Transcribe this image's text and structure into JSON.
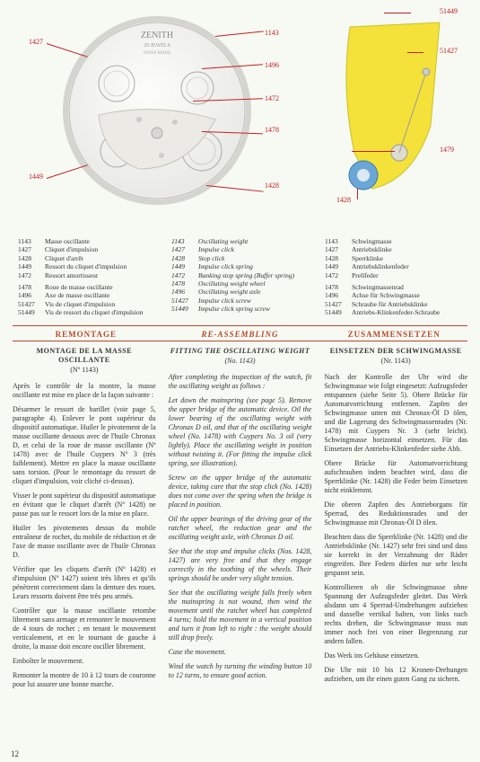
{
  "brand": "ZENITH",
  "jewels": "20 JEWELS",
  "swiss": "SWISS MADE",
  "callouts": {
    "c1143": "1143",
    "c1427": "1427",
    "c1428": "1428",
    "c1449": "1449",
    "c1472": "1472",
    "c1478": "1478",
    "c1479": "1479",
    "c1496": "1496",
    "c51427": "51427",
    "c51449": "51449"
  },
  "parts_fr": [
    {
      "n": "1143",
      "l": "Masse oscillante"
    },
    {
      "n": "1427",
      "l": "Cliquet d'impulsion"
    },
    {
      "n": "1428",
      "l": "Cliquet d'arrêt"
    },
    {
      "n": "1449",
      "l": "Ressort du cliquet d'impulsion"
    },
    {
      "n": "1472",
      "l": "Ressort amortisseur"
    },
    {
      "n": "",
      "l": ""
    },
    {
      "n": "1478",
      "l": "Roue de masse oscillante"
    },
    {
      "n": "1496",
      "l": "Axe de masse oscillante"
    },
    {
      "n": "51427",
      "l": "Vis de cliquet d'impulsion"
    },
    {
      "n": "51449",
      "l": "Vis de ressort du cliquet d'impulsion"
    }
  ],
  "parts_en": [
    {
      "n": "1143",
      "l": "Oscillating weight"
    },
    {
      "n": "1427",
      "l": "Impulse click"
    },
    {
      "n": "1428",
      "l": "Stop click"
    },
    {
      "n": "1449",
      "l": "Impulse click spring"
    },
    {
      "n": "1472",
      "l": "Banking stop spring (Buffer spring)"
    },
    {
      "n": "1478",
      "l": "Oscillating weight wheel"
    },
    {
      "n": "1496",
      "l": "Oscillating weight axle"
    },
    {
      "n": "51427",
      "l": "Impulse click screw"
    },
    {
      "n": "51449",
      "l": "Impulse click spring screw"
    }
  ],
  "parts_de": [
    {
      "n": "1143",
      "l": "Schwingmasse"
    },
    {
      "n": "1427",
      "l": "Antriebsklinke"
    },
    {
      "n": "1428",
      "l": "Sperrklinke"
    },
    {
      "n": "1449",
      "l": "Antriebsklinkenfeder"
    },
    {
      "n": "1472",
      "l": "Prellfeder"
    },
    {
      "n": "",
      "l": ""
    },
    {
      "n": "1478",
      "l": "Schwingmassenrad"
    },
    {
      "n": "1496",
      "l": "Achse für Schwingmasse"
    },
    {
      "n": "51427",
      "l": "Schraube für Antriebsklinke"
    },
    {
      "n": "51449",
      "l": "Antriebs-Klinkenfeder-Schraube"
    }
  ],
  "headers": {
    "fr": "REMONTAGE",
    "en": "RE-ASSEMBLING",
    "de": "ZUSAMMENSETZEN"
  },
  "fr": {
    "title": "MONTAGE DE LA MASSE OSCILLANTE",
    "num": "(Nº 1143)",
    "p": [
      "Après le contrôle de la montre, la masse oscillante est mise en place de la façon suivante :",
      "Désarmer le ressort de barillet (voir page 5, paragraphe 4). Enlever le pont supérieur du dispositif automatique. Huiler le pivotement de la masse oscillante dessous avec de l'huile Chronax D, et celui de la roue de masse oscillante (Nº 1478) avec de l'huile Cuypers Nº 3 (très faiblement). Mettre en place la masse oscillante sans torsion. (Pour le remontage du ressort de cliquet d'impulsion, voir cliché ci-dessus).",
      "Visser le pont supérieur du dispositif automatique en évitant que le cliquet d'arrêt (Nº 1428) ne passe pas sur le ressort lors de la mise en place.",
      "Huiler les pivotements dessus du mobile entraîneur de rochet, du mobile de réduction et de l'axe de masse oscillante avec de l'huile Chronax D.",
      "Vérifier que les cliquets d'arrêt (Nº 1428) et d'impulsion (Nº 1427) soient très libres et qu'ils pénètrent correctement dans la denture des roues. Leurs ressorts doivent être très peu armés.",
      "Contrôler que la masse oscillante retombe librement sans armage et remonter le mouvement de 4 tours de rochet ; en tenant le mouvement verticalement, et en le tournant de gauche à droite, la masse doit encore osciller librement.",
      "Emboîter le mouvement.",
      "Remonter la montre de 10 à 12 tours de couronne pour lui assurer une bonne marche."
    ]
  },
  "en": {
    "title": "FITTING THE OSCILLATING WEIGHT",
    "num": "(No. 1143)",
    "p": [
      "After completing the inspection of the watch, fit the oscillating weight as follows :",
      "Let down the mainspring (see page 5). Remove the upper bridge of the automatic device. Oil the lower bearing of the oscillating weight with Chronax D oil, and that of the oscillating weight wheel (No. 1478) with Cuypers No. 3 oil (very lightly). Place the oscillating weight in position without twisting it. (For fitting the impulse click spring, see illustration).",
      "Screw on the upper bridge of the automatic device, taking care that the stop click (No. 1428) does not come over the spring when the bridge is placed in position.",
      "Oil the upper bearings of the driving gear of the ratchet wheel, the reduction gear and the oscillating weight axle, with Chronax D oil.",
      "See that the stop and impulse clicks (Nos. 1428, 1427) are very free and that they engage correctly in the toothing of the wheels. Their springs should be under very slight tension.",
      "See that the oscillating weight falls freely when the mainspring is not wound, then wind the movement until the ratchet wheel has completed 4 turns; hold the movement in a vertical position and turn it from left to right : the weight should still drop freely.",
      "Case the movement.",
      "Wind the watch by turning the winding button 10 to 12 turns, to ensure good action."
    ]
  },
  "de": {
    "title": "EINSETZEN DER SCHWINGMASSE",
    "num": "(Nr. 1143)",
    "p": [
      "Nach der Kontrolle der Uhr wird die Schwingmasse wie folgt eingesetzt: Aufzugsfeder entspannen (siehe Seite 5). Obere Brücke für Automatvorrichtung entfernen. Zapfen der Schwingmasse unten mit Chronax-Öl D ölen, und die Lagerung des Schwingmassenrades (Nr. 1478) mit Cuypers Nr. 3 (sehr leicht). Schwingmasse horizontal einsetzen. Für das Einsetzen der Antriebs-Klinkenfeder siehe Abb.",
      "Obere Brücke für Automatvorrichtung aufschrauben indem beachtet wird, dass die Sperrklinke (Nr. 1428) die Feder beim Einsetzen nicht einklemmt.",
      "Die oberen Zapfen des Antrieborgans für Sperrad, des Reduktionsrades und der Schwingmasse mit Chronax-Öl D ölen.",
      "Beachten dass die Sperrklinke (Nr. 1428) und die Antriebsklinke (Nr. 1427) sehr frei sind und dass sie korrekt in der Verzahnung der Räder eingreifen. Ihre Federn dürfen nur sehr leicht gespannt sein.",
      "Kontrollieren ob die Schwingmasse ohne Spannung der Aufzugsfeder gleitet. Das Werk alsdann um 4 Sperrad-Umdrehungen aufziehen und dasselbe vertikal halten, von links nach rechts drehen, die Schwingmasse muss nun immer noch frei von einer Begrenzung zur andern fallen.",
      "Das Werk ins Gehäuse einsetzen.",
      "Die Uhr mit 10 bis 12 Kronen-Drehungen aufziehen, um ihr einen guten Gang zu sichern."
    ]
  },
  "page": "12"
}
